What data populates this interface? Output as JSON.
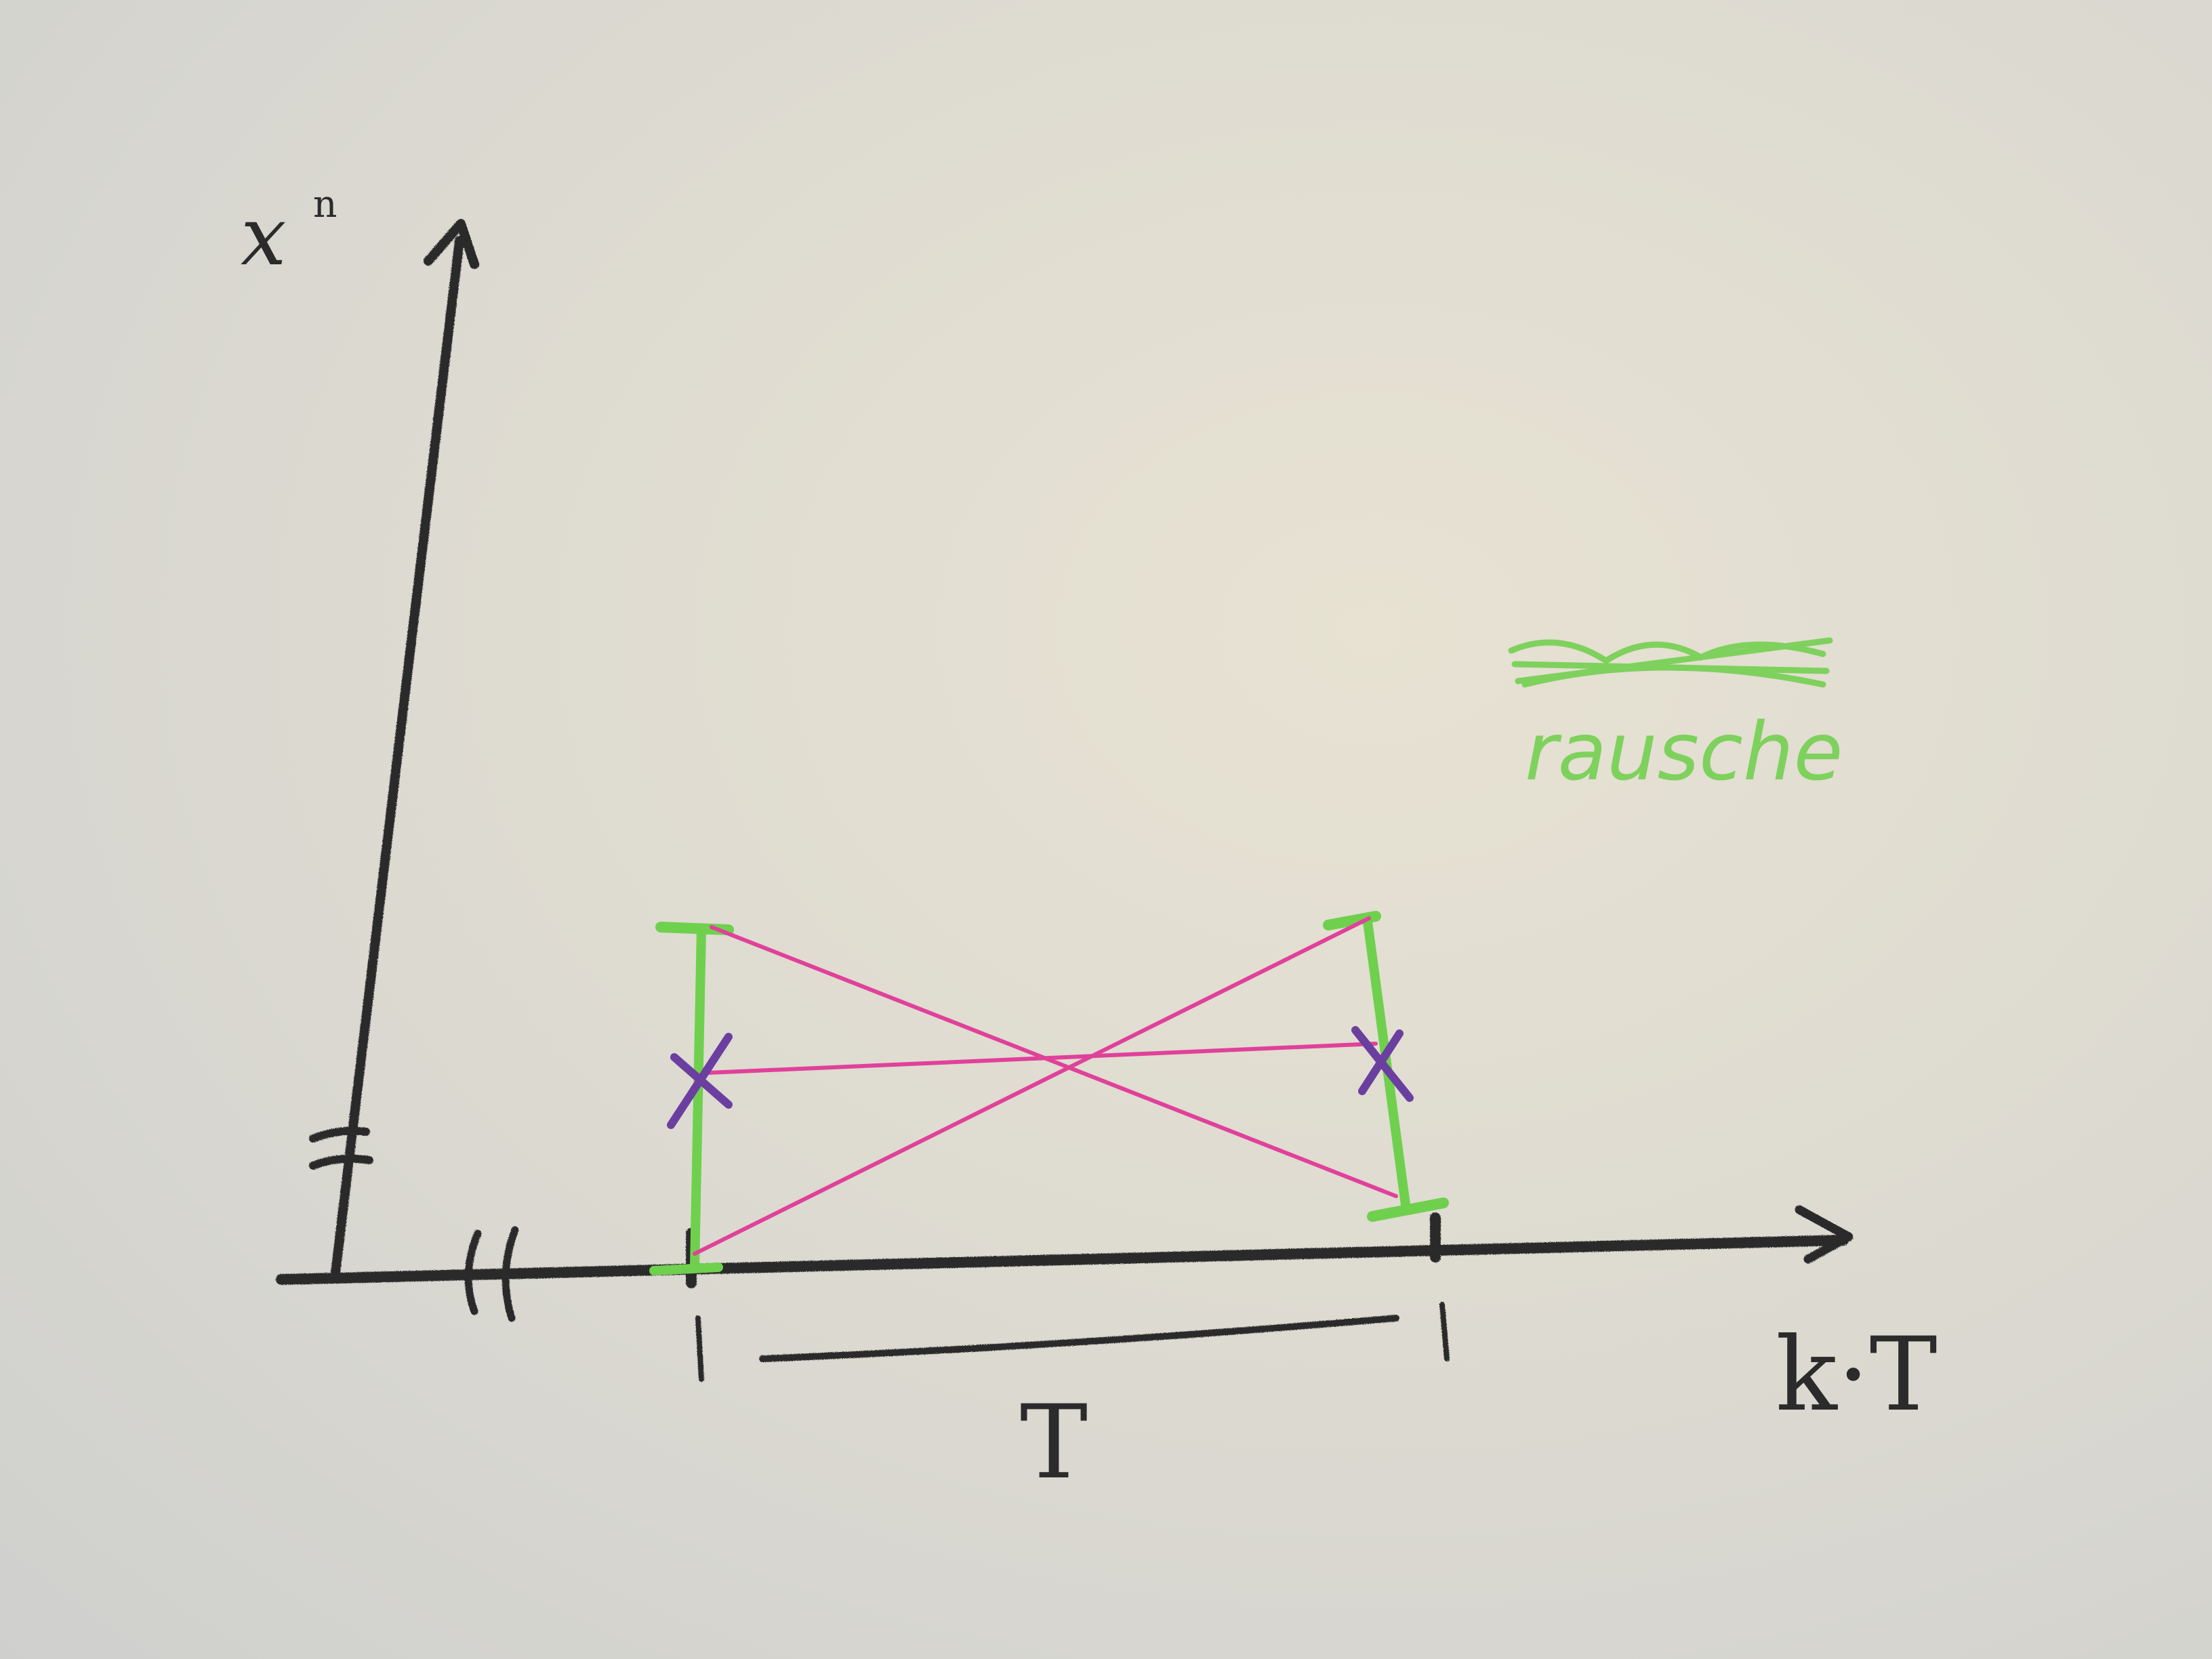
{
  "labels": {
    "y_axis": "x",
    "y_axis_superscript": "n",
    "x_axis": "k·T",
    "period": "T",
    "note": "rausche"
  },
  "colors": {
    "paper": "#e2ded3",
    "pencil": "#2b2b2b",
    "green": "#6fd04e",
    "magenta": "#e0419a",
    "purple": "#6b3fa0"
  },
  "icons": {
    "axis_arrow": "arrow-head",
    "axis_break": "double-slash-break-mark",
    "sample_point": "x-cross-mark"
  }
}
